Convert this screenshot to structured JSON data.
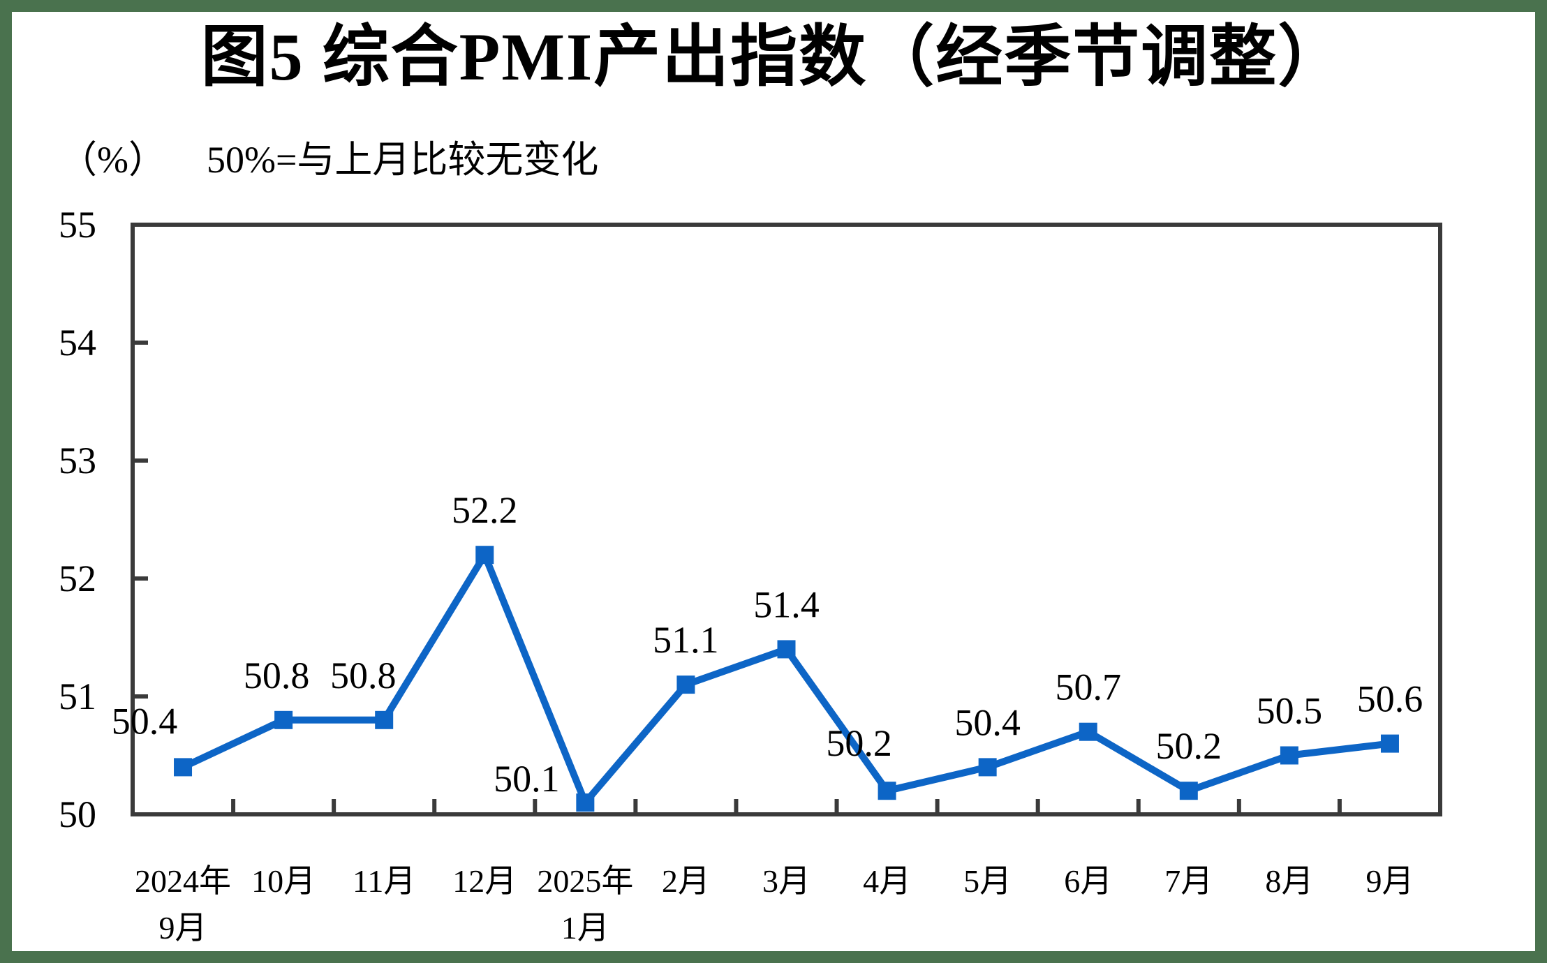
{
  "title": "图5 综合PMI产出指数（经季节调整）",
  "subtitle": {
    "unit_label": "（%）",
    "note": "50%=与上月比较无变化"
  },
  "colors": {
    "line": "#0d65c6",
    "axis": "#3a3a3a",
    "page_frame": "#4a724e",
    "text": "#000000"
  },
  "chart_data": {
    "type": "line",
    "title": "图5 综合PMI产出指数（经季节调整）",
    "unit_label": "（%）",
    "subtitle_note": "50%=与上月比较无变化",
    "categories": [
      [
        "2024年",
        "9月"
      ],
      [
        "10月"
      ],
      [
        "11月"
      ],
      [
        "12月"
      ],
      [
        "2025年",
        "1月"
      ],
      [
        "2月"
      ],
      [
        "3月"
      ],
      [
        "4月"
      ],
      [
        "5月"
      ],
      [
        "6月"
      ],
      [
        "7月"
      ],
      [
        "8月"
      ],
      [
        "9月"
      ]
    ],
    "values": [
      50.4,
      50.8,
      50.8,
      52.2,
      50.1,
      51.1,
      51.4,
      50.2,
      50.4,
      50.7,
      50.2,
      50.5,
      50.6
    ],
    "ylim": [
      50,
      55
    ],
    "y_tick_step": 1,
    "grid": false,
    "legend": false,
    "marker": "square",
    "data_labels": true,
    "label_offsets": {
      "0": [
        -55,
        -66
      ],
      "1": [
        -10,
        -64
      ],
      "2": [
        -30,
        -64
      ],
      "4": [
        -84,
        -34
      ],
      "7": [
        -40,
        -68
      ]
    },
    "default_label_offset": [
      0,
      -64
    ]
  }
}
